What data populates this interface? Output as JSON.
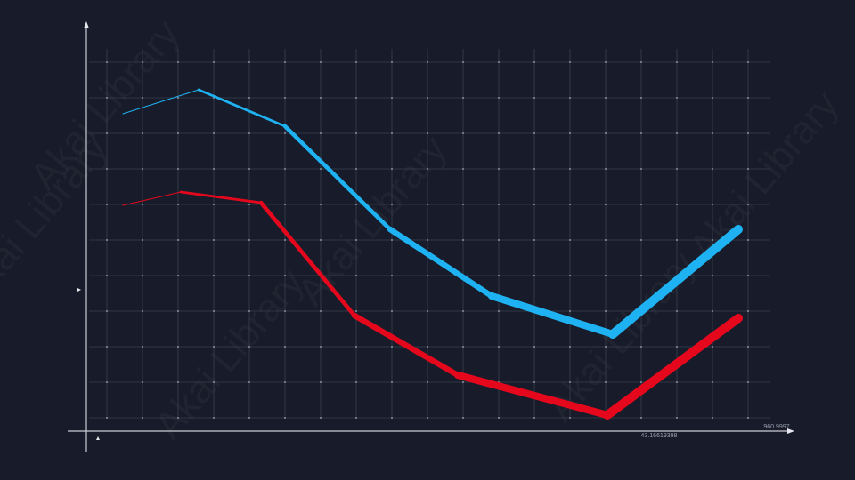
{
  "chart_data": {
    "type": "line",
    "x_end_label": "960.9997",
    "x_mid_label": "43.16619398",
    "watermark": "Akai Library",
    "xlim": [
      0,
      800
    ],
    "ylim": [
      0,
      460
    ],
    "grid": true,
    "series": [
      {
        "color": "#1fb2f2",
        "x": [
          41,
          126,
          223,
          341,
          455,
          591,
          732
        ],
        "values": [
          357,
          384,
          343,
          227,
          152,
          109,
          227
        ]
      },
      {
        "color": "#e5081d",
        "x": [
          41,
          106,
          196,
          301,
          417,
          585,
          732
        ],
        "values": [
          254,
          269,
          257,
          130,
          63,
          18,
          127
        ]
      }
    ]
  }
}
